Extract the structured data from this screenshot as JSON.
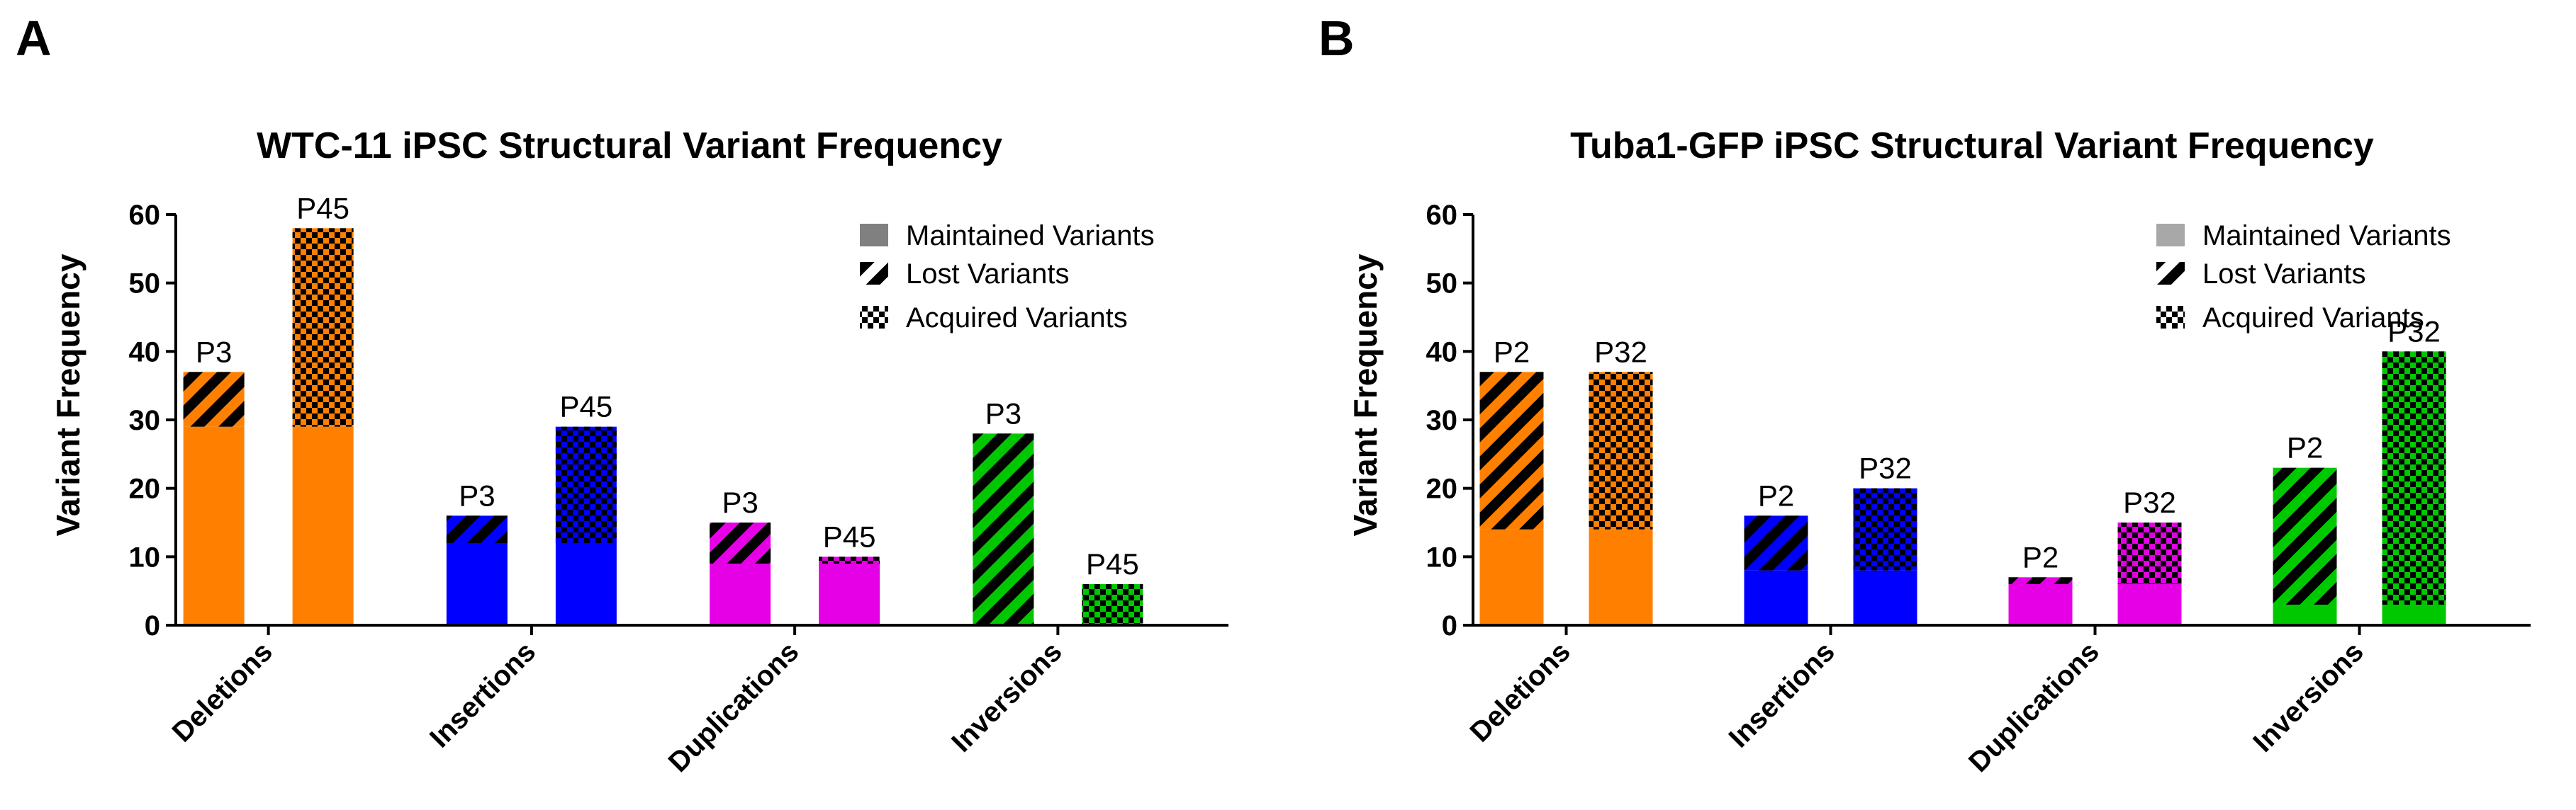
{
  "figure": {
    "panel_a_letter": "A",
    "panel_b_letter": "B"
  },
  "legend_fill_colors": {
    "maintained": "#808080",
    "maintained_b": "#a8a8a8",
    "pattern": "#000000"
  },
  "chart_data": [
    {
      "id": "A",
      "type": "bar",
      "stacked": true,
      "title": "WTC-11 iPSC  Structural  Variant Frequency",
      "xlabel": "",
      "ylabel": "Variant Frequency",
      "ylim": [
        0,
        60
      ],
      "yticks": [
        0,
        10,
        20,
        30,
        40,
        50,
        60
      ],
      "legend_placement": "top-right",
      "legend": [
        "Maintained Variants",
        "Lost Variants",
        "Acquired Variants"
      ],
      "categories": [
        {
          "name": "Deletions",
          "color": "#ff8000",
          "bars": [
            {
              "label": "P3",
              "maintained": 29,
              "pattern": "lost",
              "pattern_value": 8
            },
            {
              "label": "P45",
              "maintained": 29,
              "pattern": "acquired",
              "pattern_value": 29
            }
          ]
        },
        {
          "name": "Insertions",
          "color": "#0000ff",
          "bars": [
            {
              "label": "P3",
              "maintained": 12,
              "pattern": "lost",
              "pattern_value": 4
            },
            {
              "label": "P45",
              "maintained": 12,
              "pattern": "acquired",
              "pattern_value": 17
            }
          ]
        },
        {
          "name": "Duplications",
          "color": "#e600e6",
          "bars": [
            {
              "label": "P3",
              "maintained": 9,
              "pattern": "lost",
              "pattern_value": 6
            },
            {
              "label": "P45",
              "maintained": 9,
              "pattern": "acquired",
              "pattern_value": 1
            }
          ]
        },
        {
          "name": "Inversions",
          "color": "#00c800",
          "bars": [
            {
              "label": "P3",
              "maintained": 0,
              "pattern": "lost",
              "pattern_value": 28
            },
            {
              "label": "P45",
              "maintained": 0,
              "pattern": "acquired",
              "pattern_value": 6
            }
          ]
        }
      ]
    },
    {
      "id": "B",
      "type": "bar",
      "stacked": true,
      "title": "Tuba1-GFP iPSC Structural  Variant Frequency",
      "xlabel": "",
      "ylabel": "Variant  Frequency",
      "ylim": [
        0,
        60
      ],
      "yticks": [
        0,
        10,
        20,
        30,
        40,
        50,
        60
      ],
      "legend_placement": "top-right",
      "legend": [
        "Maintained Variants",
        "Lost Variants",
        "Acquired Variants"
      ],
      "categories": [
        {
          "name": "Deletions",
          "color": "#ff8000",
          "bars": [
            {
              "label": "P2",
              "maintained": 14,
              "pattern": "lost",
              "pattern_value": 23
            },
            {
              "label": "P32",
              "maintained": 14,
              "pattern": "acquired",
              "pattern_value": 23
            }
          ]
        },
        {
          "name": "Insertions",
          "color": "#0000ff",
          "bars": [
            {
              "label": "P2",
              "maintained": 8,
              "pattern": "lost",
              "pattern_value": 8
            },
            {
              "label": "P32",
              "maintained": 8,
              "pattern": "acquired",
              "pattern_value": 12
            }
          ]
        },
        {
          "name": "Duplications",
          "color": "#e600e6",
          "bars": [
            {
              "label": "P2",
              "maintained": 6,
              "pattern": "lost",
              "pattern_value": 1
            },
            {
              "label": "P32",
              "maintained": 6,
              "pattern": "acquired",
              "pattern_value": 9
            }
          ]
        },
        {
          "name": "Inversions",
          "color": "#00c800",
          "bars": [
            {
              "label": "P2",
              "maintained": 3,
              "pattern": "lost",
              "pattern_value": 20
            },
            {
              "label": "P32",
              "maintained": 3,
              "pattern": "acquired",
              "pattern_value": 37
            }
          ]
        }
      ]
    }
  ]
}
